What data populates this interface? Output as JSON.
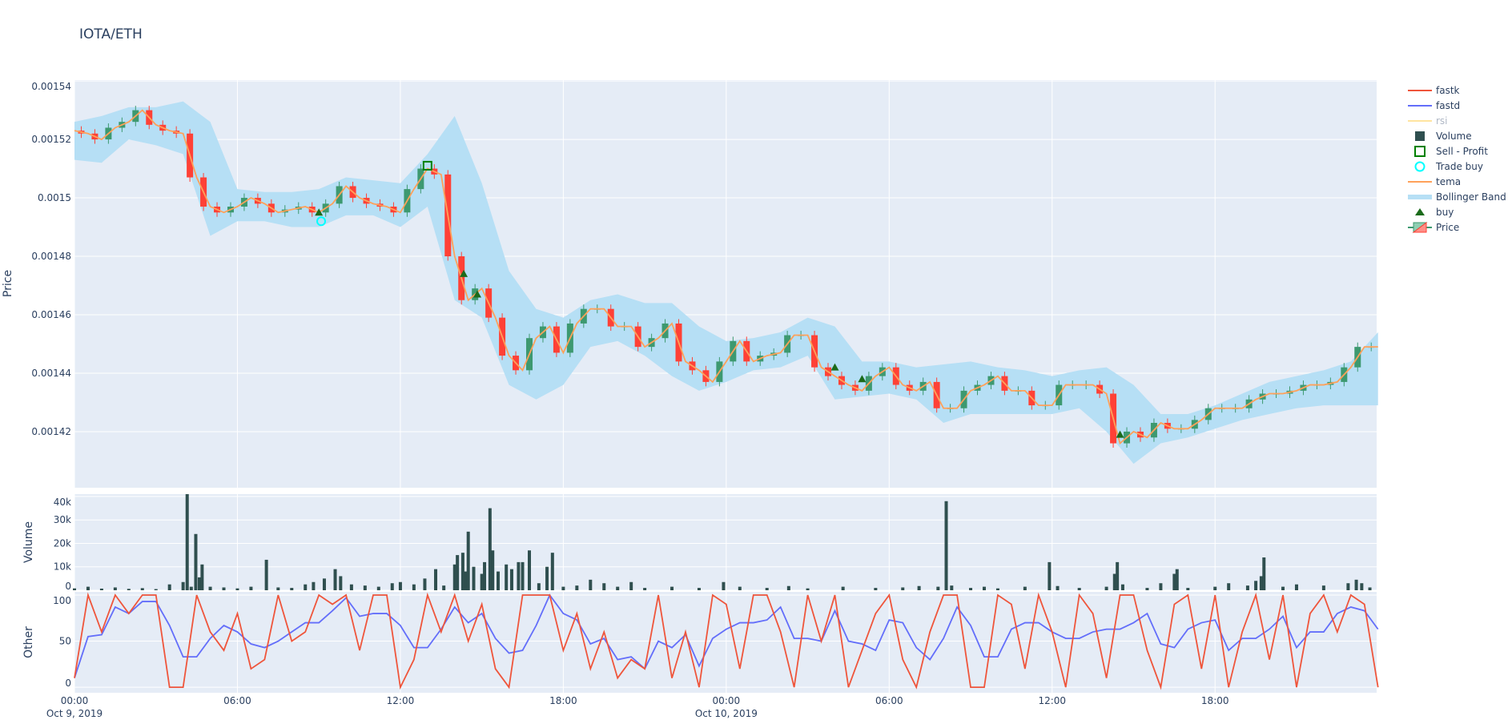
{
  "chart_data": {
    "type": "candlestick-with-subplots",
    "title": "IOTA/ETH",
    "x_ticks": [
      {
        "time": "2019-10-09T00:00",
        "label": "00:00",
        "sublabel": "Oct 9, 2019"
      },
      {
        "time": "2019-10-09T06:00",
        "label": "06:00",
        "sublabel": ""
      },
      {
        "time": "2019-10-09T12:00",
        "label": "12:00",
        "sublabel": ""
      },
      {
        "time": "2019-10-09T18:00",
        "label": "18:00",
        "sublabel": ""
      },
      {
        "time": "2019-10-10T00:00",
        "label": "00:00",
        "sublabel": "Oct 10, 2019"
      },
      {
        "time": "2019-10-10T06:00",
        "label": "06:00",
        "sublabel": ""
      },
      {
        "time": "2019-10-10T12:00",
        "label": "12:00",
        "sublabel": ""
      },
      {
        "time": "2019-10-10T18:00",
        "label": "18:00",
        "sublabel": ""
      }
    ],
    "x_range": [
      "2019-10-09T00:00",
      "2019-10-10T23:57"
    ],
    "grid": true,
    "legend_position": "right",
    "colors": {
      "background": "#e5ecf6",
      "increasing": "#3d9970",
      "decreasing": "#ff4136",
      "fastk": "#ef553b",
      "fastd": "#636efa",
      "rsi": "#ffe4a0",
      "volume": "#2f4f4f",
      "sell_profit": "#008000",
      "trade_buy": "#00ffff",
      "tema": "#ffa15a",
      "bollinger": "#b6dff5",
      "buy": "#1b6b1b"
    },
    "panels": {
      "price": {
        "ylabel": "Price",
        "ylim": [
          0.0014008,
          0.0015403
        ],
        "ticks": [
          {
            "v": 0.00142,
            "label": "0.00142"
          },
          {
            "v": 0.00144,
            "label": "0.00144"
          },
          {
            "v": 0.00146,
            "label": "0.00146"
          },
          {
            "v": 0.00148,
            "label": "0.00148"
          },
          {
            "v": 0.0015,
            "label": "0.0015"
          },
          {
            "v": 0.00152,
            "label": "0.00152"
          },
          {
            "v": 0.00154,
            "label": "0.00154"
          }
        ]
      },
      "volume": {
        "ylabel": "Volume",
        "ylim": [
          0,
          41000
        ],
        "ticks": [
          {
            "v": 0,
            "label": "0"
          },
          {
            "v": 10000,
            "label": "10k"
          },
          {
            "v": 20000,
            "label": "20k"
          },
          {
            "v": 30000,
            "label": "30k"
          },
          {
            "v": 40000,
            "label": "40k"
          }
        ]
      },
      "other": {
        "ylabel": "Other",
        "ylim": [
          -6,
          103.5
        ],
        "ticks": [
          {
            "v": 0,
            "label": "0"
          },
          {
            "v": 50,
            "label": "50"
          },
          {
            "v": 100,
            "label": "100"
          }
        ]
      }
    },
    "price_series": {
      "start": "2019-10-09T00:00",
      "interval_minutes": 30,
      "close": [
        0.001523,
        0.001522,
        0.00152,
        0.001524,
        0.001526,
        0.00153,
        0.001525,
        0.001523,
        0.001522,
        0.001507,
        0.001497,
        0.001495,
        0.001497,
        0.0015,
        0.001498,
        0.001495,
        0.001496,
        0.001497,
        0.001495,
        0.001498,
        0.001504,
        0.0015,
        0.001498,
        0.001497,
        0.001495,
        0.001503,
        0.00151,
        0.001508,
        0.00148,
        0.001465,
        0.001469,
        0.001459,
        0.001446,
        0.001441,
        0.001452,
        0.001456,
        0.001447,
        0.001457,
        0.001462,
        0.001462,
        0.001456,
        0.001456,
        0.001449,
        0.001452,
        0.001457,
        0.001444,
        0.001441,
        0.001437,
        0.001444,
        0.001451,
        0.001444,
        0.001446,
        0.001447,
        0.001453,
        0.001453,
        0.001442,
        0.001439,
        0.001436,
        0.001434,
        0.001439,
        0.001442,
        0.001436,
        0.001434,
        0.001437,
        0.001428,
        0.001428,
        0.001434,
        0.001436,
        0.001439,
        0.001434,
        0.001434,
        0.001429,
        0.001429,
        0.001436,
        0.001436,
        0.001436,
        0.001433,
        0.001416,
        0.00142,
        0.001418,
        0.001423,
        0.001421,
        0.001421,
        0.001424,
        0.001428,
        0.001428,
        0.001428,
        0.001431,
        0.001433,
        0.001433,
        0.001434,
        0.001436,
        0.001436,
        0.001437,
        0.001442,
        0.001449,
        0.001449
      ],
      "tema": [
        0.001523,
        0.001522,
        0.00152,
        0.001524,
        0.001526,
        0.00153,
        0.001525,
        0.001523,
        0.001522,
        0.001507,
        0.001497,
        0.001495,
        0.001497,
        0.0015,
        0.001498,
        0.001495,
        0.001496,
        0.001497,
        0.001495,
        0.001498,
        0.001504,
        0.0015,
        0.001498,
        0.001497,
        0.001495,
        0.001503,
        0.00151,
        0.001508,
        0.00148,
        0.001465,
        0.001469,
        0.001459,
        0.001446,
        0.001441,
        0.001452,
        0.001456,
        0.001447,
        0.001457,
        0.001462,
        0.001462,
        0.001456,
        0.001456,
        0.001449,
        0.001452,
        0.001457,
        0.001444,
        0.001441,
        0.001437,
        0.001444,
        0.001451,
        0.001444,
        0.001446,
        0.001447,
        0.001453,
        0.001453,
        0.001442,
        0.001439,
        0.001436,
        0.001434,
        0.001439,
        0.001442,
        0.001436,
        0.001434,
        0.001437,
        0.001428,
        0.001428,
        0.001434,
        0.001436,
        0.001439,
        0.001434,
        0.001434,
        0.001429,
        0.001429,
        0.001436,
        0.001436,
        0.001436,
        0.001433,
        0.001416,
        0.00142,
        0.001418,
        0.001423,
        0.001421,
        0.001421,
        0.001424,
        0.001428,
        0.001428,
        0.001428,
        0.001431,
        0.001433,
        0.001433,
        0.001434,
        0.001436,
        0.001436,
        0.001437,
        0.001442,
        0.001449,
        0.001449
      ]
    },
    "bollinger": {
      "start": "2019-10-09T00:00",
      "interval_minutes": 60,
      "upper": [
        0.001526,
        0.001528,
        0.001531,
        0.001531,
        0.001533,
        0.001526,
        0.001503,
        0.001502,
        0.001502,
        0.001503,
        0.001507,
        0.001506,
        0.001505,
        0.001515,
        0.001528,
        0.001505,
        0.001475,
        0.001462,
        0.001459,
        0.001465,
        0.001467,
        0.001464,
        0.001464,
        0.001456,
        0.001451,
        0.001452,
        0.001454,
        0.001459,
        0.001456,
        0.001444,
        0.001444,
        0.001442,
        0.001443,
        0.001444,
        0.001442,
        0.001441,
        0.001439,
        0.001441,
        0.001442,
        0.001436,
        0.001426,
        0.001426,
        0.001429,
        0.001433,
        0.001437,
        0.001439,
        0.001441,
        0.001444,
        0.001454
      ],
      "lower": [
        0.001513,
        0.001512,
        0.00152,
        0.001518,
        0.001515,
        0.001487,
        0.001492,
        0.001492,
        0.00149,
        0.00149,
        0.001494,
        0.001494,
        0.00149,
        0.001497,
        0.001465,
        0.001459,
        0.001436,
        0.001431,
        0.001436,
        0.001449,
        0.001451,
        0.001446,
        0.001439,
        0.001434,
        0.001437,
        0.001441,
        0.001442,
        0.001446,
        0.001431,
        0.001432,
        0.001433,
        0.001431,
        0.001423,
        0.001426,
        0.001426,
        0.001426,
        0.001426,
        0.001428,
        0.00142,
        0.001409,
        0.001416,
        0.001418,
        0.001421,
        0.001424,
        0.001426,
        0.001428,
        0.001429,
        0.001429,
        0.001429
      ]
    },
    "markers": {
      "buy": [
        {
          "time": "2019-10-09T09:00",
          "price": 0.001495
        },
        {
          "time": "2019-10-09T14:20",
          "price": 0.001474
        },
        {
          "time": "2019-10-09T14:50",
          "price": 0.001467
        },
        {
          "time": "2019-10-10T04:00",
          "price": 0.001442
        },
        {
          "time": "2019-10-10T05:00",
          "price": 0.001438
        },
        {
          "time": "2019-10-10T14:30",
          "price": 0.001419
        }
      ],
      "trade_buy": [
        {
          "time": "2019-10-09T09:05",
          "price": 0.001492
        }
      ],
      "sell_profit": [
        {
          "time": "2019-10-09T13:00",
          "price": 0.001511
        }
      ]
    },
    "volume": [
      [
        "2019-10-09T00:00",
        800
      ],
      [
        "2019-10-09T00:30",
        1500
      ],
      [
        "2019-10-09T01:00",
        700
      ],
      [
        "2019-10-09T01:30",
        1200
      ],
      [
        "2019-10-09T02:00",
        600
      ],
      [
        "2019-10-09T02:30",
        900
      ],
      [
        "2019-10-09T03:00",
        500
      ],
      [
        "2019-10-09T03:30",
        2500
      ],
      [
        "2019-10-09T04:00",
        3500
      ],
      [
        "2019-10-09T04:09",
        41000
      ],
      [
        "2019-10-09T04:18",
        1500
      ],
      [
        "2019-10-09T04:28",
        24000
      ],
      [
        "2019-10-09T04:36",
        5500
      ],
      [
        "2019-10-09T04:42",
        11000
      ],
      [
        "2019-10-09T05:00",
        1500
      ],
      [
        "2019-10-09T05:30",
        1200
      ],
      [
        "2019-10-09T06:00",
        800
      ],
      [
        "2019-10-09T06:30",
        1500
      ],
      [
        "2019-10-09T07:04",
        13000
      ],
      [
        "2019-10-09T07:30",
        1200
      ],
      [
        "2019-10-09T08:00",
        1000
      ],
      [
        "2019-10-09T08:30",
        2500
      ],
      [
        "2019-10-09T08:48",
        3500
      ],
      [
        "2019-10-09T09:12",
        5000
      ],
      [
        "2019-10-09T09:36",
        9000
      ],
      [
        "2019-10-09T09:48",
        6000
      ],
      [
        "2019-10-09T10:12",
        2500
      ],
      [
        "2019-10-09T10:42",
        2000
      ],
      [
        "2019-10-09T11:12",
        1500
      ],
      [
        "2019-10-09T11:42",
        3000
      ],
      [
        "2019-10-09T12:00",
        3500
      ],
      [
        "2019-10-09T12:30",
        2500
      ],
      [
        "2019-10-09T12:54",
        5000
      ],
      [
        "2019-10-09T13:18",
        9000
      ],
      [
        "2019-10-09T13:36",
        2000
      ],
      [
        "2019-10-09T14:00",
        11000
      ],
      [
        "2019-10-09T14:06",
        15000
      ],
      [
        "2019-10-09T14:18",
        16000
      ],
      [
        "2019-10-09T14:24",
        8000
      ],
      [
        "2019-10-09T14:30",
        25000
      ],
      [
        "2019-10-09T14:42",
        10000
      ],
      [
        "2019-10-09T15:00",
        7000
      ],
      [
        "2019-10-09T15:06",
        12000
      ],
      [
        "2019-10-09T15:18",
        35000
      ],
      [
        "2019-10-09T15:24",
        17000
      ],
      [
        "2019-10-09T15:36",
        8000
      ],
      [
        "2019-10-09T15:54",
        11000
      ],
      [
        "2019-10-09T16:06",
        9000
      ],
      [
        "2019-10-09T16:21",
        12000
      ],
      [
        "2019-10-09T16:30",
        12000
      ],
      [
        "2019-10-09T16:45",
        17000
      ],
      [
        "2019-10-09T17:06",
        3000
      ],
      [
        "2019-10-09T17:24",
        10000
      ],
      [
        "2019-10-09T17:36",
        16000
      ],
      [
        "2019-10-09T18:00",
        1500
      ],
      [
        "2019-10-09T18:30",
        2000
      ],
      [
        "2019-10-09T19:00",
        4500
      ],
      [
        "2019-10-09T19:30",
        3000
      ],
      [
        "2019-10-09T20:00",
        1500
      ],
      [
        "2019-10-09T20:30",
        3500
      ],
      [
        "2019-10-09T21:00",
        1000
      ],
      [
        "2019-10-09T22:00",
        1500
      ],
      [
        "2019-10-09T23:00",
        1000
      ],
      [
        "2019-10-09T23:54",
        3500
      ],
      [
        "2019-10-10T00:30",
        1500
      ],
      [
        "2019-10-10T01:30",
        1000
      ],
      [
        "2019-10-10T02:18",
        1800
      ],
      [
        "2019-10-10T03:00",
        800
      ],
      [
        "2019-10-10T04:18",
        1500
      ],
      [
        "2019-10-10T05:30",
        1000
      ],
      [
        "2019-10-10T06:30",
        1200
      ],
      [
        "2019-10-10T07:06",
        1800
      ],
      [
        "2019-10-10T07:48",
        1500
      ],
      [
        "2019-10-10T08:06",
        38000
      ],
      [
        "2019-10-10T08:18",
        2000
      ],
      [
        "2019-10-10T09:00",
        1000
      ],
      [
        "2019-10-10T09:30",
        1500
      ],
      [
        "2019-10-10T10:00",
        800
      ],
      [
        "2019-10-10T11:00",
        1500
      ],
      [
        "2019-10-10T11:54",
        12000
      ],
      [
        "2019-10-10T12:12",
        1800
      ],
      [
        "2019-10-10T13:00",
        1000
      ],
      [
        "2019-10-10T14:00",
        1500
      ],
      [
        "2019-10-10T14:18",
        7000
      ],
      [
        "2019-10-10T14:24",
        12000
      ],
      [
        "2019-10-10T14:36",
        2500
      ],
      [
        "2019-10-10T15:30",
        1000
      ],
      [
        "2019-10-10T16:00",
        3000
      ],
      [
        "2019-10-10T16:30",
        7000
      ],
      [
        "2019-10-10T16:36",
        9000
      ],
      [
        "2019-10-10T17:00",
        1000
      ],
      [
        "2019-10-10T18:00",
        1500
      ],
      [
        "2019-10-10T18:30",
        3000
      ],
      [
        "2019-10-10T19:12",
        2000
      ],
      [
        "2019-10-10T19:30",
        4000
      ],
      [
        "2019-10-10T19:42",
        6000
      ],
      [
        "2019-10-10T19:48",
        14000
      ],
      [
        "2019-10-10T20:30",
        1500
      ],
      [
        "2019-10-10T21:00",
        2500
      ],
      [
        "2019-10-10T22:00",
        2000
      ],
      [
        "2019-10-10T22:54",
        3000
      ],
      [
        "2019-10-10T23:12",
        4500
      ],
      [
        "2019-10-10T23:24",
        3000
      ],
      [
        "2019-10-10T23:42",
        1200
      ]
    ],
    "oscillators": {
      "start": "2019-10-09T00:00",
      "interval_minutes": 30,
      "fastk": [
        10,
        100,
        60,
        100,
        80,
        100,
        100,
        0,
        0,
        100,
        60,
        40,
        80,
        20,
        30,
        100,
        50,
        60,
        100,
        90,
        100,
        40,
        100,
        100,
        0,
        30,
        100,
        60,
        100,
        50,
        90,
        20,
        0,
        100,
        100,
        100,
        40,
        80,
        20,
        60,
        10,
        30,
        20,
        100,
        10,
        60,
        0,
        100,
        90,
        20,
        100,
        100,
        60,
        0,
        100,
        50,
        100,
        0,
        40,
        80,
        100,
        30,
        0,
        60,
        100,
        100,
        0,
        0,
        100,
        90,
        20,
        100,
        60,
        0,
        100,
        80,
        10,
        100,
        100,
        40,
        0,
        90,
        100,
        20,
        100,
        0,
        60,
        100,
        30,
        100,
        0,
        80,
        100,
        60,
        100,
        90,
        0
      ],
      "fastd": [
        10,
        55,
        57,
        87,
        80,
        93,
        93,
        67,
        33,
        33,
        53,
        67,
        60,
        47,
        43,
        50,
        60,
        70,
        70,
        83,
        97,
        77,
        80,
        80,
        67,
        43,
        43,
        63,
        87,
        70,
        80,
        53,
        37,
        40,
        67,
        100,
        80,
        73,
        47,
        53,
        30,
        33,
        20,
        50,
        43,
        57,
        23,
        53,
        63,
        70,
        70,
        73,
        87,
        53,
        53,
        50,
        83,
        50,
        47,
        40,
        73,
        70,
        43,
        30,
        53,
        87,
        67,
        33,
        33,
        63,
        70,
        70,
        60,
        53,
        53,
        60,
        63,
        63,
        70,
        80,
        47,
        43,
        63,
        70,
        73,
        40,
        53,
        53,
        63,
        77,
        43,
        60,
        60,
        80,
        87,
        83,
        63
      ]
    },
    "legend": [
      {
        "key": "fastk",
        "label": "fastk",
        "symbol": "line"
      },
      {
        "key": "fastd",
        "label": "fastd",
        "symbol": "line"
      },
      {
        "key": "rsi",
        "label": "rsi",
        "symbol": "line",
        "hidden": true
      },
      {
        "key": "volume",
        "label": "Volume",
        "symbol": "square"
      },
      {
        "key": "sell_profit",
        "label": "Sell - Profit",
        "symbol": "square-open"
      },
      {
        "key": "trade_buy",
        "label": "Trade buy",
        "symbol": "circle-open"
      },
      {
        "key": "tema",
        "label": "tema",
        "symbol": "line"
      },
      {
        "key": "bollinger",
        "label": "Bollinger Band",
        "symbol": "band"
      },
      {
        "key": "buy",
        "label": "buy",
        "symbol": "triangle"
      },
      {
        "key": "price",
        "label": "Price",
        "symbol": "candle"
      }
    ]
  }
}
